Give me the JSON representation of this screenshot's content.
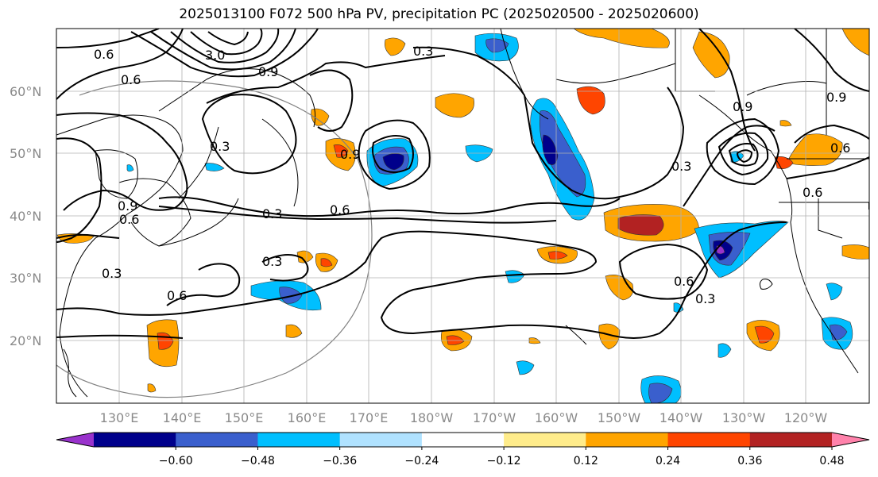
{
  "title": "2025013100 F072 500 hPa PV, precipitation PC (2025020500 - 2025020600)",
  "lat_labels": [
    "60°N",
    "50°N",
    "40°N",
    "30°N",
    "20°N"
  ],
  "lon_labels": [
    "130°E",
    "140°E",
    "150°E",
    "160°E",
    "170°E",
    "180°W",
    "170°W",
    "160°W",
    "150°W",
    "140°W",
    "130°W",
    "120°W"
  ],
  "contour_labels": [
    "0.6",
    "0.6",
    "3.0",
    "0.9",
    "0.3",
    "0.3",
    "0.3",
    "0.6",
    "0.3",
    "0.6",
    "0.9",
    "0.3",
    "0.6",
    "0.3",
    "0.9",
    "0.6",
    "0.6",
    "0.9",
    "0.3",
    "0.6",
    "0.9"
  ],
  "colorbar": {
    "tick_labels": [
      "−0.60",
      "−0.48",
      "−0.36",
      "−0.24",
      "−0.12",
      "0.12",
      "0.24",
      "0.36",
      "0.48",
      "0.60"
    ],
    "colors": [
      "#9932cc",
      "#00008b",
      "#3a5fcd",
      "#00bfff",
      "#b0e2ff",
      "#ffffff",
      "#ffec8b",
      "#ffa500",
      "#ff4500",
      "#b22222",
      "#ff82ab"
    ]
  }
}
